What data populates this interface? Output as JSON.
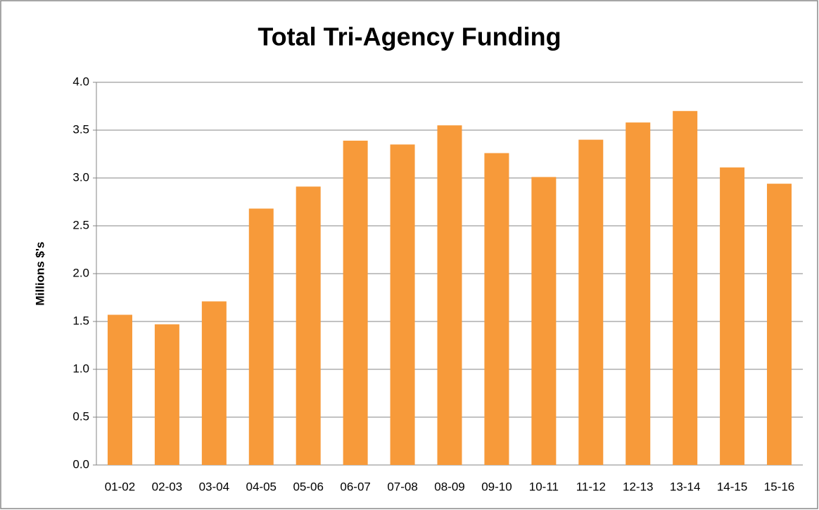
{
  "chart_data": {
    "type": "bar",
    "title": "Total Tri-Agency Funding",
    "y_label": "Millions  $'s",
    "categories": [
      "01-02",
      "02-03",
      "03-04",
      "04-05",
      "05-06",
      "06-07",
      "07-08",
      "08-09",
      "09-10",
      "10-11",
      "11-12",
      "12-13",
      "13-14",
      "14-15",
      "15-16"
    ],
    "values": [
      1.57,
      1.47,
      1.71,
      2.68,
      2.91,
      3.39,
      3.35,
      3.55,
      3.26,
      3.01,
      3.4,
      3.58,
      3.7,
      3.11,
      2.94
    ],
    "color": "#f79a3a",
    "ylim": [
      0,
      4
    ],
    "yticks": [
      {
        "value": 0,
        "label": "0.0"
      },
      0.5,
      {
        "value": 1,
        "label": "1.0"
      },
      1.5,
      {
        "value": 2,
        "label": "2.0"
      },
      2.5,
      {
        "value": 3,
        "label": "3.0"
      },
      3.5,
      {
        "value": 4,
        "label": "4.0"
      }
    ],
    "grid": true
  }
}
